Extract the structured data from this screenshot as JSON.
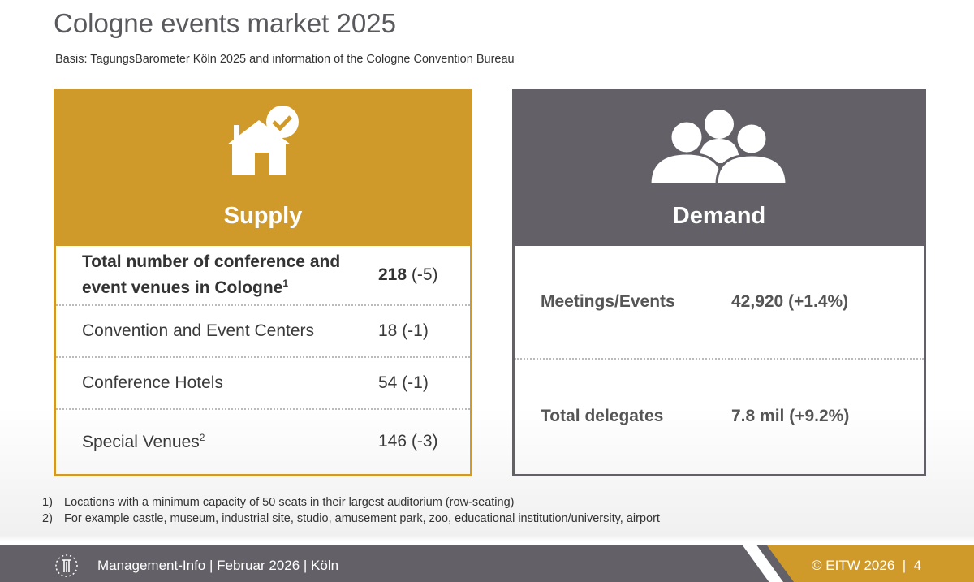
{
  "title": "Cologne events market 2025",
  "basis": "Basis: TagungsBarometer Köln 2025 and information of the Cologne Convention Bureau",
  "supply": {
    "label": "Supply",
    "icon": "house-check-icon",
    "rows": [
      {
        "key": "Total number of conference and event venues in Cologne",
        "sup": "1",
        "value": "218",
        "change": " (-5)"
      },
      {
        "key": "Convention and Event Centers",
        "sup": "",
        "value": "18 (-1)"
      },
      {
        "key": "Conference Hotels",
        "sup": "",
        "value": "54 (-1)"
      },
      {
        "key": "Special Venues",
        "sup": "2",
        "value": "146 (-3)"
      }
    ]
  },
  "demand": {
    "label": "Demand",
    "icon": "people-group-icon",
    "rows": [
      {
        "key": "Meetings/Events",
        "value": "42,920 (+1.4%)"
      },
      {
        "key": "Total delegates",
        "value": "7.8 mil (+9.2%)"
      }
    ]
  },
  "footnotes": [
    {
      "n": "1)",
      "text": "Locations with a minimum capacity of 50 seats in their largest auditorium (row-seating)"
    },
    {
      "n": "2)",
      "text": "For example castle, museum, industrial site, studio, amusement park, zoo, educational institution/university, airport"
    }
  ],
  "footer": {
    "left": "Management-Info | Februar 2026 | Köln",
    "right": "© EITW 2026  |  4"
  },
  "colors": {
    "gold": "#d09a2a",
    "gray": "#636167"
  }
}
